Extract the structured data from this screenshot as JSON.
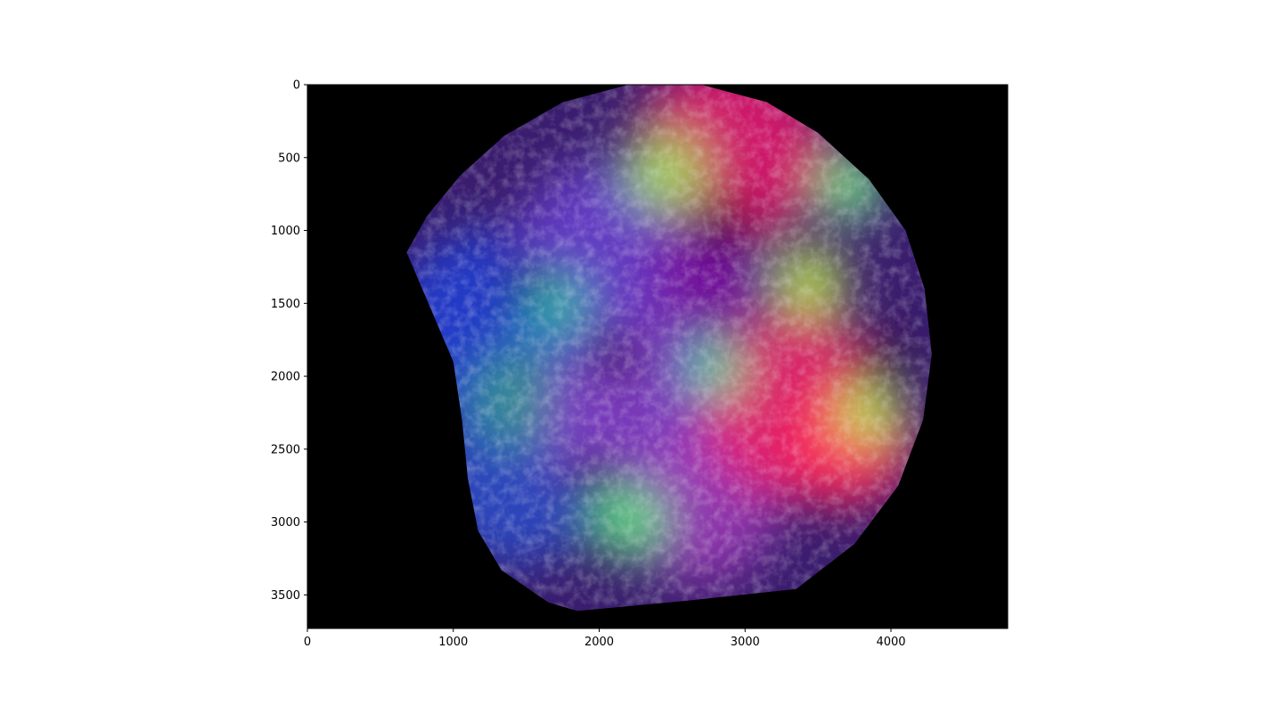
{
  "chart_data": {
    "type": "heatmap",
    "title": "",
    "xlabel": "",
    "ylabel": "",
    "xlim": [
      0,
      4800
    ],
    "ylim": [
      3730,
      0
    ],
    "x_ticks": [
      0,
      1000,
      2000,
      3000,
      4000
    ],
    "y_ticks": [
      0,
      500,
      1000,
      1500,
      2000,
      2500,
      3000,
      3500
    ],
    "x_tick_labels": [
      "0",
      "1000",
      "2000",
      "3000",
      "4000"
    ],
    "y_tick_labels": [
      "0",
      "500",
      "1000",
      "1500",
      "2000",
      "2500",
      "3000",
      "3500"
    ],
    "image_extent": {
      "width": 4800,
      "height": 3730
    },
    "image_content": "false-color RGB satellite terrain composite",
    "footprint_outline": [
      [
        2200,
        0
      ],
      [
        2700,
        0
      ],
      [
        3150,
        120
      ],
      [
        3500,
        330
      ],
      [
        3850,
        650
      ],
      [
        4100,
        1000
      ],
      [
        4230,
        1400
      ],
      [
        4280,
        1850
      ],
      [
        4220,
        2300
      ],
      [
        4050,
        2750
      ],
      [
        3750,
        3150
      ],
      [
        3350,
        3460
      ],
      [
        2600,
        3540
      ],
      [
        1850,
        3610
      ],
      [
        1650,
        3550
      ],
      [
        1330,
        3330
      ],
      [
        1170,
        3060
      ],
      [
        1100,
        2700
      ],
      [
        1060,
        2300
      ],
      [
        1000,
        1900
      ],
      [
        830,
        1500
      ],
      [
        680,
        1150
      ],
      [
        820,
        900
      ],
      [
        1050,
        620
      ],
      [
        1350,
        350
      ],
      [
        1750,
        120
      ],
      [
        2200,
        0
      ]
    ],
    "color_regions": [
      {
        "color": "#1f3fd6",
        "cx": 1250,
        "cy": 1700,
        "r": 700
      },
      {
        "color": "#2a4ec8",
        "cx": 1400,
        "cy": 2700,
        "r": 600
      },
      {
        "color": "#3a9a8a",
        "cx": 1450,
        "cy": 2150,
        "r": 350
      },
      {
        "color": "#6a3fd0",
        "cx": 2050,
        "cy": 1150,
        "r": 620
      },
      {
        "color": "#8440c8",
        "cx": 2300,
        "cy": 2300,
        "r": 700
      },
      {
        "color": "#9a3bb5",
        "cx": 2700,
        "cy": 2900,
        "r": 520
      },
      {
        "color": "#e8186a",
        "cx": 2900,
        "cy": 450,
        "r": 650
      },
      {
        "color": "#f0206a",
        "cx": 3350,
        "cy": 2200,
        "r": 650
      },
      {
        "color": "#ff2a5c",
        "cx": 3700,
        "cy": 2450,
        "r": 450
      },
      {
        "color": "#7a10a0",
        "cx": 2750,
        "cy": 1300,
        "r": 420
      },
      {
        "color": "#9bf05a",
        "cx": 2450,
        "cy": 600,
        "r": 280
      },
      {
        "color": "#c8ff4a",
        "cx": 3450,
        "cy": 1350,
        "r": 240
      },
      {
        "color": "#a8ff5a",
        "cx": 3850,
        "cy": 2250,
        "r": 220
      },
      {
        "color": "#7aff8a",
        "cx": 3720,
        "cy": 700,
        "r": 230
      },
      {
        "color": "#46f0a0",
        "cx": 2800,
        "cy": 1950,
        "r": 200
      },
      {
        "color": "#5af07a",
        "cx": 2200,
        "cy": 3000,
        "r": 260
      },
      {
        "color": "#2fd0a0",
        "cx": 1700,
        "cy": 1500,
        "r": 220
      },
      {
        "color": "#2d0a10",
        "cx": 2850,
        "cy": 950,
        "r": 200
      },
      {
        "color": "#220812",
        "cx": 3900,
        "cy": 1900,
        "r": 160
      },
      {
        "color": "#150818",
        "cx": 2100,
        "cy": 1850,
        "r": 170
      },
      {
        "color": "#160a1a",
        "cx": 1950,
        "cy": 2700,
        "r": 160
      },
      {
        "color": "#180d24",
        "cx": 1500,
        "cy": 1350,
        "r": 140
      }
    ]
  }
}
